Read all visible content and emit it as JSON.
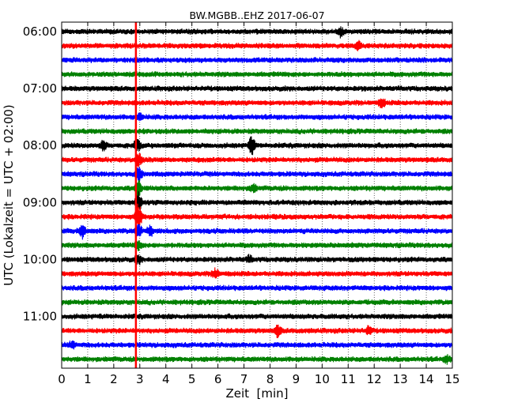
{
  "chart_data": {
    "type": "line",
    "title": "BW.MGBB..EHZ 2017-06-07",
    "xlabel": "Zeit  [min]",
    "ylabel": "UTC (Lokalzeit = UTC + 02:00)",
    "xlim": [
      0,
      15
    ],
    "x_ticks": [
      "0",
      "1",
      "2",
      "3",
      "4",
      "5",
      "6",
      "7",
      "8",
      "9",
      "10",
      "11",
      "12",
      "13",
      "14",
      "15"
    ],
    "y_ticks": [
      "06:00",
      "07:00",
      "08:00",
      "09:00",
      "10:00",
      "11:00"
    ],
    "grid": "vertical-dotted",
    "trace_interval_min": 15,
    "trace_count": 24,
    "trace_colors": [
      "#000000",
      "#ff0000",
      "#0000ff",
      "#008000"
    ],
    "marker_line": {
      "x": 2.85,
      "color": "#ff0000"
    },
    "series": [
      {
        "start": "06:00",
        "events": [
          [
            10.7,
            1.0
          ]
        ]
      },
      {
        "start": "06:15",
        "events": [
          [
            11.4,
            1.1
          ]
        ]
      },
      {
        "start": "06:30",
        "events": []
      },
      {
        "start": "06:45",
        "events": []
      },
      {
        "start": "07:00",
        "events": []
      },
      {
        "start": "07:15",
        "events": [
          [
            12.3,
            1.0
          ]
        ]
      },
      {
        "start": "07:30",
        "events": [
          [
            3.0,
            0.8
          ]
        ]
      },
      {
        "start": "07:45",
        "events": []
      },
      {
        "start": "08:00",
        "events": [
          [
            1.6,
            1.1
          ],
          [
            7.3,
            2.2
          ],
          [
            2.9,
            1.4
          ]
        ]
      },
      {
        "start": "08:15",
        "events": [
          [
            2.95,
            1.6
          ]
        ]
      },
      {
        "start": "08:30",
        "events": [
          [
            2.95,
            1.8
          ]
        ]
      },
      {
        "start": "08:45",
        "events": [
          [
            7.35,
            0.9
          ],
          [
            2.95,
            1.9
          ]
        ]
      },
      {
        "start": "09:00",
        "events": [
          [
            2.95,
            2.4
          ]
        ]
      },
      {
        "start": "09:15",
        "events": [
          [
            2.95,
            3.2
          ]
        ]
      },
      {
        "start": "09:30",
        "events": [
          [
            0.8,
            1.6
          ],
          [
            2.95,
            1.9
          ],
          [
            3.4,
            1.0
          ]
        ]
      },
      {
        "start": "09:45",
        "events": [
          [
            2.95,
            1.0
          ]
        ]
      },
      {
        "start": "10:00",
        "events": [
          [
            2.95,
            0.9
          ],
          [
            7.2,
            0.7
          ]
        ]
      },
      {
        "start": "10:15",
        "events": [
          [
            5.9,
            1.2
          ]
        ]
      },
      {
        "start": "10:30",
        "events": []
      },
      {
        "start": "10:45",
        "events": []
      },
      {
        "start": "11:00",
        "events": []
      },
      {
        "start": "11:15",
        "events": [
          [
            8.3,
            1.3
          ],
          [
            11.8,
            1.0
          ]
        ]
      },
      {
        "start": "11:30",
        "events": [
          [
            0.4,
            0.9
          ]
        ]
      },
      {
        "start": "11:45",
        "events": [
          [
            14.8,
            0.8
          ]
        ]
      }
    ]
  }
}
